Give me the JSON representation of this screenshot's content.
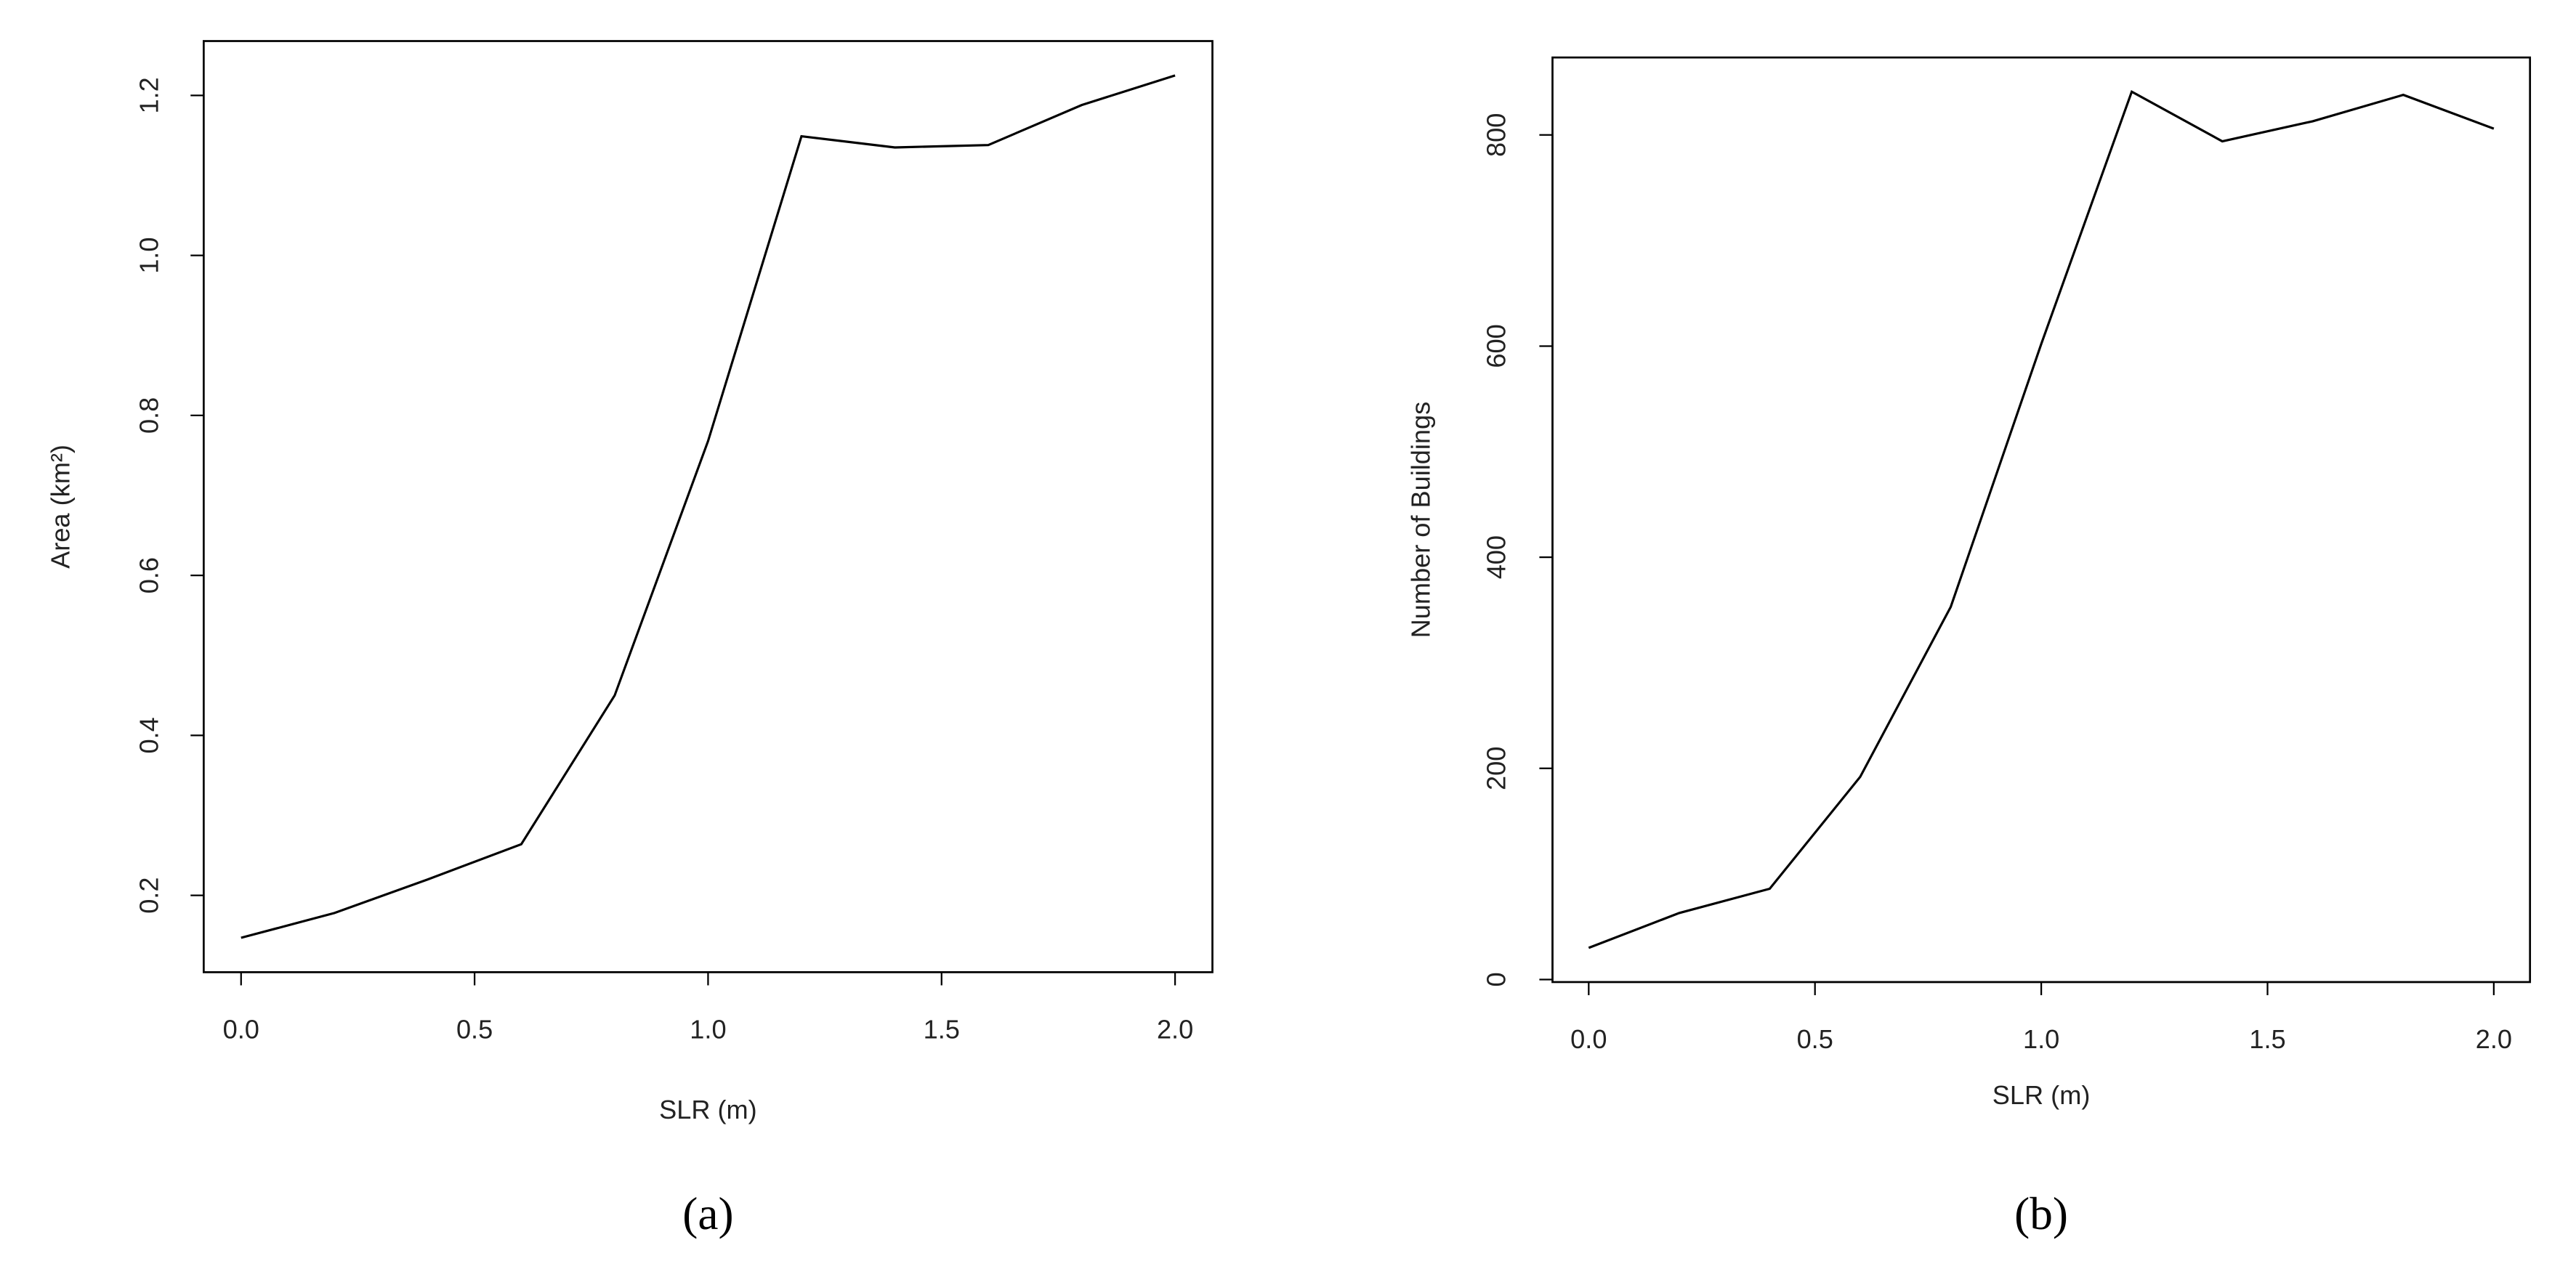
{
  "chart_data": [
    {
      "type": "line",
      "xlabel": "SLR (m)",
      "ylabel": "Area (km²)",
      "caption": "(a)",
      "x": [
        0.0,
        0.2,
        0.4,
        0.6,
        0.8,
        1.0,
        1.2,
        1.4,
        1.6,
        1.8,
        2.0
      ],
      "values": [
        0.147,
        0.178,
        0.22,
        0.264,
        0.45,
        0.768,
        1.149,
        1.135,
        1.138,
        1.188,
        1.225
      ],
      "color": "#000000",
      "xlim": [
        -0.08,
        2.08
      ],
      "ylim": [
        0.104,
        1.268
      ],
      "xticks": [
        {
          "value": 0,
          "label": "0.0"
        },
        {
          "value": 0.5,
          "label": "0.5"
        },
        {
          "value": 1,
          "label": "1.0"
        },
        {
          "value": 1.5,
          "label": "1.5"
        },
        {
          "value": 2,
          "label": "2.0"
        }
      ],
      "yticks": [
        {
          "value": 0.2,
          "label": "0.2"
        },
        {
          "value": 0.4,
          "label": "0.4"
        },
        {
          "value": 0.6,
          "label": "0.6"
        },
        {
          "value": 0.8,
          "label": "0.8"
        },
        {
          "value": 1,
          "label": "1.0"
        },
        {
          "value": 1.2,
          "label": "1.2"
        }
      ]
    },
    {
      "type": "line",
      "xlabel": "SLR (m)",
      "ylabel": "Number of Buildings",
      "caption": "(b)",
      "x": [
        0.0,
        0.2,
        0.4,
        0.6,
        0.8,
        1.0,
        1.2,
        1.4,
        1.6,
        1.8,
        2.0
      ],
      "values": [
        30,
        63,
        86,
        192,
        353,
        602,
        841,
        794,
        813,
        838,
        806
      ],
      "color": "#000000",
      "xlim": [
        -0.08,
        2.08
      ],
      "ylim": [
        -2.4,
        873.4
      ],
      "xticks": [
        {
          "value": 0,
          "label": "0.0"
        },
        {
          "value": 0.5,
          "label": "0.5"
        },
        {
          "value": 1,
          "label": "1.0"
        },
        {
          "value": 1.5,
          "label": "1.5"
        },
        {
          "value": 2,
          "label": "2.0"
        }
      ],
      "yticks": [
        0,
        200,
        400,
        600,
        800
      ]
    }
  ]
}
